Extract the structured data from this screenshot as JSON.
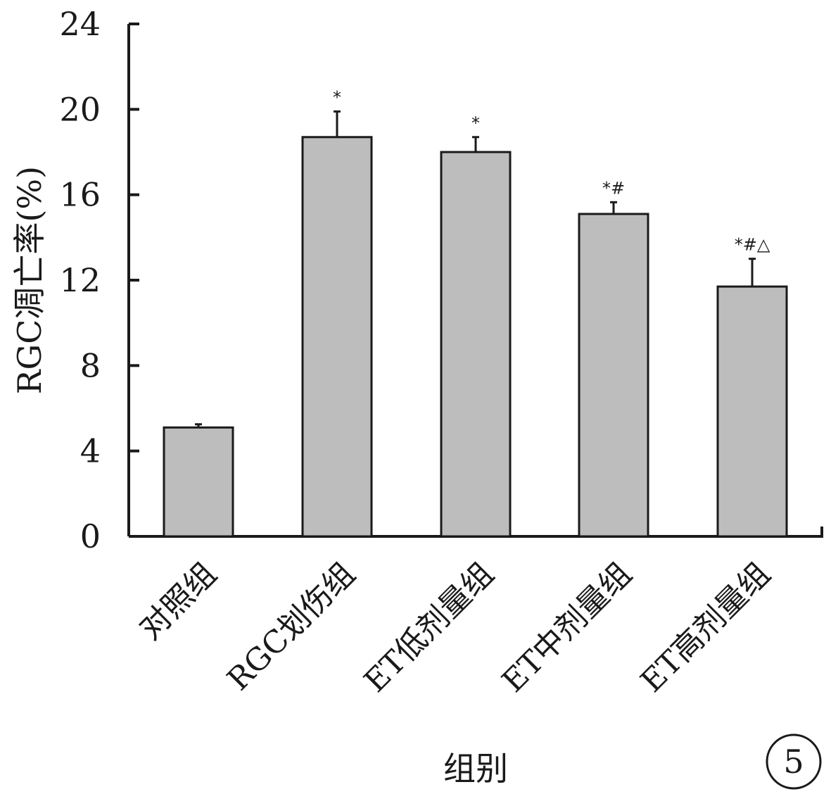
{
  "chart_data": {
    "type": "bar",
    "title": "",
    "xlabel": "组别",
    "ylabel": "RGC凋亡率(%)",
    "ylim": [
      0,
      24
    ],
    "yticks": [
      0,
      4,
      8,
      12,
      16,
      20,
      24
    ],
    "categories": [
      "对照组",
      "RGC划伤组",
      "ET低剂量组",
      "ET中剂量组",
      "ET高剂量组"
    ],
    "values": [
      5.1,
      18.7,
      18.0,
      15.1,
      11.7
    ],
    "errors": [
      0.15,
      1.2,
      0.7,
      0.55,
      1.3
    ],
    "annotations": [
      "",
      "*",
      "*",
      "*#",
      "*#△"
    ],
    "panel_label": "5",
    "grid": false,
    "bar_color": "#bdbdbd",
    "axis_color": "#1a1a1a"
  }
}
